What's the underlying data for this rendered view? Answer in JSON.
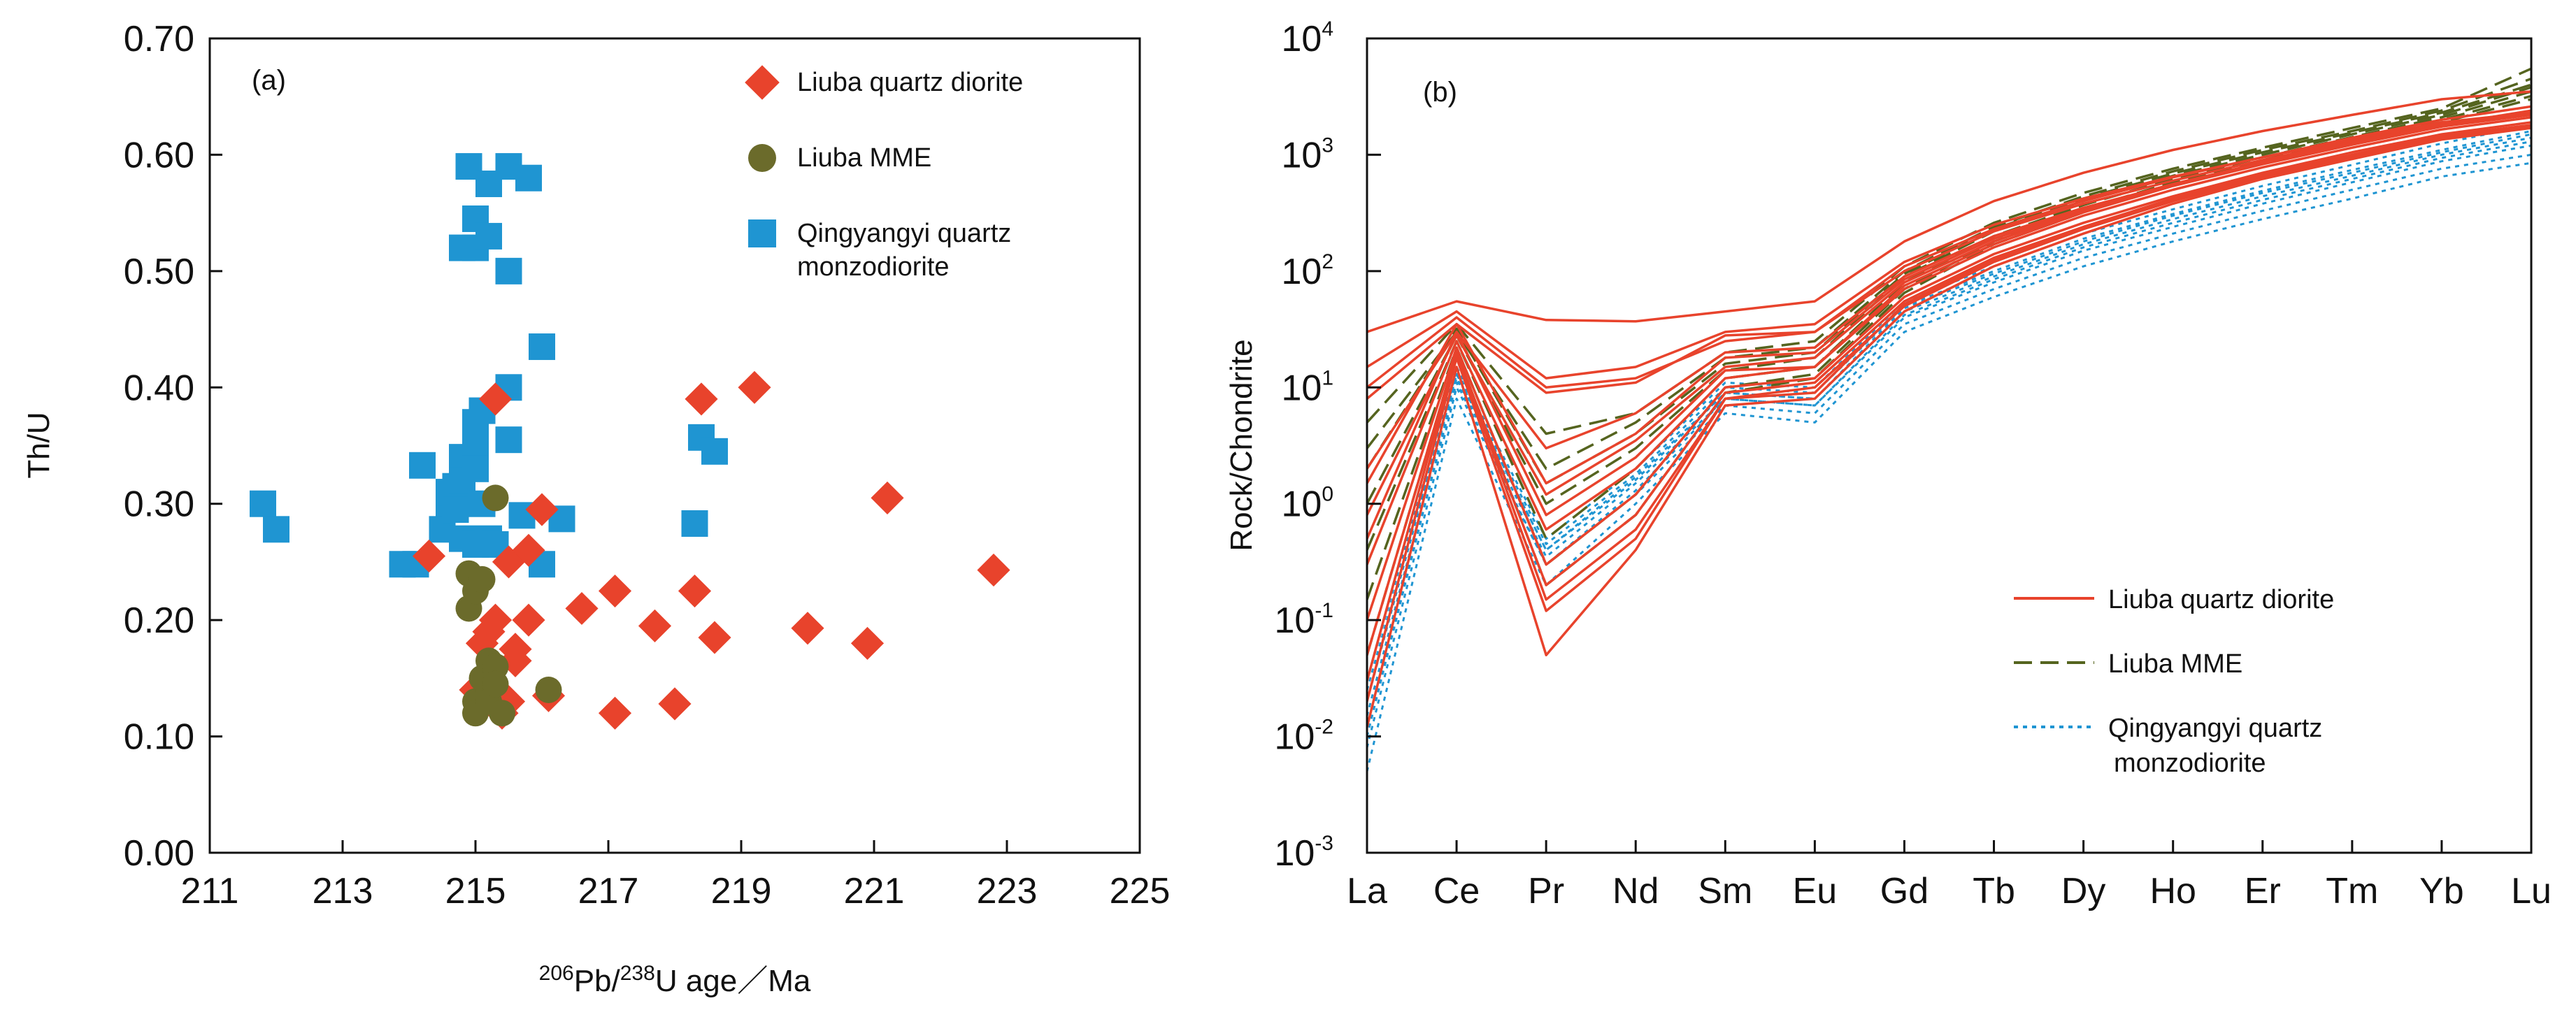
{
  "chart_data": [
    {
      "type": "scatter",
      "panel_label": "(a)",
      "xlabel_parts": {
        "pb_mass": "206",
        "pb": "Pb/",
        "u_mass": "238",
        "rest": "U age／Ma"
      },
      "ylabel": "Th/U",
      "xlim": [
        211,
        225
      ],
      "ylim": [
        0,
        0.7
      ],
      "xticks": [
        "211",
        "213",
        "215",
        "217",
        "219",
        "221",
        "223",
        "225"
      ],
      "yticks": [
        "0.00",
        "0.10",
        "0.20",
        "0.30",
        "0.40",
        "0.50",
        "0.60",
        "0.70"
      ],
      "series": [
        {
          "name": "Liuba quartz diorite",
          "marker": "diamond",
          "color": "#e8432c",
          "points": [
            [
              214.3,
              0.255
            ],
            [
              215.0,
              0.14
            ],
            [
              215.1,
              0.18
            ],
            [
              215.2,
              0.19
            ],
            [
              215.3,
              0.39
            ],
            [
              215.3,
              0.2
            ],
            [
              215.4,
              0.12
            ],
            [
              215.5,
              0.25
            ],
            [
              215.5,
              0.13
            ],
            [
              215.6,
              0.175
            ],
            [
              215.6,
              0.165
            ],
            [
              215.8,
              0.26
            ],
            [
              215.8,
              0.2
            ],
            [
              216.0,
              0.295
            ],
            [
              216.1,
              0.135
            ],
            [
              216.6,
              0.21
            ],
            [
              217.1,
              0.225
            ],
            [
              217.1,
              0.12
            ],
            [
              217.7,
              0.195
            ],
            [
              218.0,
              0.128
            ],
            [
              218.3,
              0.225
            ],
            [
              218.4,
              0.39
            ],
            [
              218.6,
              0.185
            ],
            [
              219.2,
              0.4
            ],
            [
              220.0,
              0.193
            ],
            [
              220.9,
              0.18
            ],
            [
              221.2,
              0.305
            ],
            [
              222.8,
              0.243
            ]
          ]
        },
        {
          "name": "Liuba MME",
          "marker": "circle",
          "color": "#6b6b2b",
          "points": [
            [
              214.9,
              0.21
            ],
            [
              214.9,
              0.24
            ],
            [
              215.0,
              0.225
            ],
            [
              215.0,
              0.13
            ],
            [
              215.0,
              0.12
            ],
            [
              215.1,
              0.235
            ],
            [
              215.1,
              0.15
            ],
            [
              215.2,
              0.165
            ],
            [
              215.2,
              0.14
            ],
            [
              215.2,
              0.13
            ],
            [
              215.3,
              0.305
            ],
            [
              215.3,
              0.16
            ],
            [
              215.3,
              0.145
            ],
            [
              215.4,
              0.12
            ],
            [
              216.1,
              0.14
            ]
          ]
        },
        {
          "name": "Qingyangyi quartz monzodiorite",
          "marker": "square",
          "color": "#1f95d2",
          "points": [
            [
              211.8,
              0.3
            ],
            [
              212.0,
              0.278
            ],
            [
              213.9,
              0.248
            ],
            [
              214.1,
              0.248
            ],
            [
              214.2,
              0.333
            ],
            [
              214.5,
              0.278
            ],
            [
              214.6,
              0.3
            ],
            [
              214.6,
              0.31
            ],
            [
              214.7,
              0.315
            ],
            [
              214.7,
              0.295
            ],
            [
              214.8,
              0.34
            ],
            [
              214.8,
              0.32
            ],
            [
              214.8,
              0.27
            ],
            [
              214.8,
              0.52
            ],
            [
              214.9,
              0.59
            ],
            [
              215.0,
              0.545
            ],
            [
              215.0,
              0.52
            ],
            [
              215.0,
              0.37
            ],
            [
              215.0,
              0.35
            ],
            [
              215.0,
              0.33
            ],
            [
              215.0,
              0.265
            ],
            [
              215.1,
              0.38
            ],
            [
              215.1,
              0.3
            ],
            [
              215.2,
              0.575
            ],
            [
              215.2,
              0.53
            ],
            [
              215.2,
              0.27
            ],
            [
              215.3,
              0.265
            ],
            [
              215.5,
              0.59
            ],
            [
              215.5,
              0.4
            ],
            [
              215.5,
              0.355
            ],
            [
              215.5,
              0.5
            ],
            [
              215.7,
              0.29
            ],
            [
              215.8,
              0.58
            ],
            [
              216.0,
              0.435
            ],
            [
              216.0,
              0.248
            ],
            [
              216.3,
              0.287
            ],
            [
              218.3,
              0.283
            ],
            [
              218.4,
              0.357
            ],
            [
              218.6,
              0.345
            ]
          ]
        }
      ],
      "legend": {
        "placement": "top-right",
        "entries": [
          {
            "marker": "diamond",
            "color": "#e8432c",
            "lines": [
              "Liuba quartz diorite"
            ]
          },
          {
            "marker": "circle",
            "color": "#6b6b2b",
            "lines": [
              "Liuba MME"
            ]
          },
          {
            "marker": "square",
            "color": "#1f95d2",
            "lines": [
              "Qingyangyi quartz",
              "monzodiorite"
            ]
          }
        ]
      }
    },
    {
      "type": "line",
      "panel_label": "(b)",
      "ylabel": "Rock/Chondrite",
      "yscale": "log",
      "ylim_exponent": [
        -3,
        4
      ],
      "ytick_base": "10",
      "ytick_exponents": [
        "4",
        "3",
        "2",
        "1",
        "0",
        "-1",
        "-2",
        "-3"
      ],
      "categories": [
        "La",
        "Ce",
        "Pr",
        "Nd",
        "Sm",
        "Eu",
        "Gd",
        "Tb",
        "Dy",
        "Ho",
        "Er",
        "Tm",
        "Yb",
        "Lu"
      ],
      "series": [
        {
          "name": "Liuba quartz diorite",
          "style": "solid",
          "color": "#e8432c",
          "profiles": [
            [
              30,
              55,
              38,
              37,
              45,
              55,
              180,
              400,
              700,
              1100,
              1600,
              2200,
              3000,
              3500
            ],
            [
              15,
              45,
              12,
              15,
              30,
              35,
              120,
              250,
              420,
              650,
              950,
              1350,
              1900,
              2300
            ],
            [
              10,
              40,
              10,
              12,
              25,
              30,
              100,
              220,
              380,
              600,
              900,
              1300,
              1800,
              2300
            ],
            [
              8,
              35,
              9,
              11,
              28,
              30,
              110,
              230,
              400,
              640,
              950,
              1400,
              2000,
              2600
            ],
            [
              2,
              30,
              3,
              6,
              20,
              22,
              90,
              200,
              350,
              560,
              850,
              1250,
              1750,
              2200
            ],
            [
              0.8,
              28,
              1.2,
              3.5,
              15,
              18,
              80,
              180,
              330,
              550,
              850,
              1250,
              1800,
              2400
            ],
            [
              0.3,
              25,
              0.6,
              2,
              12,
              15,
              70,
              160,
              300,
              500,
              780,
              1150,
              1650,
              2100
            ],
            [
              0.1,
              22,
              0.3,
              1.2,
              10,
              12,
              60,
              140,
              260,
              440,
              700,
              1050,
              1500,
              1900
            ],
            [
              0.05,
              20,
              0.2,
              0.8,
              9,
              11,
              55,
              130,
              240,
              420,
              680,
              1000,
              1450,
              1800
            ],
            [
              0.02,
              18,
              0.12,
              0.5,
              8,
              10,
              50,
              120,
              230,
              400,
              640,
              950,
              1400,
              1750
            ],
            [
              0.012,
              15,
              0.05,
              0.4,
              7,
              8,
              45,
              110,
              210,
              380,
              620,
              920,
              1350,
              1700
            ],
            [
              0.03,
              20,
              0.15,
              0.6,
              8,
              9,
              52,
              125,
              235,
              410,
              660,
              980,
              1420,
              1780
            ],
            [
              0.5,
              30,
              0.8,
              2.5,
              14,
              15,
              75,
              170,
              320,
              540,
              830,
              1220,
              1750,
              2250
            ],
            [
              1.5,
              35,
              1.5,
              4,
              18,
              20,
              85,
              190,
              340,
              560,
              860,
              1280,
              1820,
              2350
            ]
          ]
        },
        {
          "name": "Liuba MME",
          "style": "dashed",
          "color": "#55641f",
          "profiles": [
            [
              5,
              35,
              4,
              6,
              20,
              25,
              110,
              260,
              470,
              760,
              1150,
              1700,
              2500,
              5500
            ],
            [
              3,
              30,
              2,
              5,
              18,
              22,
              100,
              240,
              440,
              720,
              1100,
              1600,
              2400,
              4500
            ],
            [
              1,
              28,
              1,
              3,
              14,
              18,
              90,
              220,
              400,
              660,
              1000,
              1500,
              2200,
              3800
            ],
            [
              0.4,
              25,
              0.5,
              2,
              12,
              15,
              80,
              200,
              370,
              620,
              950,
              1420,
              2100,
              3500
            ],
            [
              0.15,
              22,
              0.3,
              1.2,
              10,
              13,
              70,
              180,
              340,
              580,
              900,
              1350,
              2000,
              3200
            ],
            [
              0.05,
              20,
              0.2,
              0.8,
              9,
              12,
              65,
              170,
              320,
              550,
              860,
              1300,
              1900,
              3000
            ],
            [
              2,
              32,
              1.5,
              4,
              16,
              20,
              95,
              230,
              420,
              690,
              1050,
              1550,
              2300,
              4000
            ]
          ]
        },
        {
          "name": "Qingyangyi quartz monzodiorite",
          "style": "dotted",
          "color": "#1f95d2",
          "profiles": [
            [
              0.005,
              8,
              0.2,
              1,
              6,
              5,
              30,
              60,
              110,
              180,
              280,
              420,
              650,
              850
            ],
            [
              0.008,
              10,
              0.3,
              1.2,
              7,
              6,
              35,
              70,
              130,
              210,
              330,
              500,
              760,
              1000
            ],
            [
              0.01,
              12,
              0.35,
              1.5,
              8,
              7,
              40,
              80,
              150,
              240,
              380,
              580,
              880,
              1200
            ],
            [
              0.015,
              13,
              0.4,
              1.6,
              9,
              8,
              45,
              90,
              170,
              280,
              440,
              660,
              1000,
              1400
            ],
            [
              0.02,
              14,
              0.45,
              1.8,
              10,
              9,
              50,
              100,
              190,
              310,
              490,
              740,
              1100,
              1600
            ],
            [
              0.03,
              15,
              0.5,
              2,
              11,
              10,
              55,
              110,
              210,
              340,
              540,
              820,
              1250,
              1800
            ],
            [
              0.012,
              11,
              0.3,
              1.3,
              8,
              7,
              42,
              85,
              160,
              260,
              410,
              620,
              940,
              1300
            ],
            [
              0.025,
              13,
              0.4,
              1.7,
              9,
              8,
              48,
              95,
              180,
              300,
              470,
              700,
              1050,
              1500
            ]
          ]
        }
      ],
      "legend": {
        "placement": "bottom-right",
        "entries": [
          {
            "style": "solid",
            "color": "#e8432c",
            "lines": [
              "Liuba quartz diorite"
            ]
          },
          {
            "style": "dashed",
            "color": "#55641f",
            "lines": [
              "Liuba  MME"
            ]
          },
          {
            "style": "dotted",
            "color": "#1f95d2",
            "lines": [
              "Qingyangyi quartz",
              "monzodiorite"
            ]
          }
        ]
      }
    }
  ]
}
